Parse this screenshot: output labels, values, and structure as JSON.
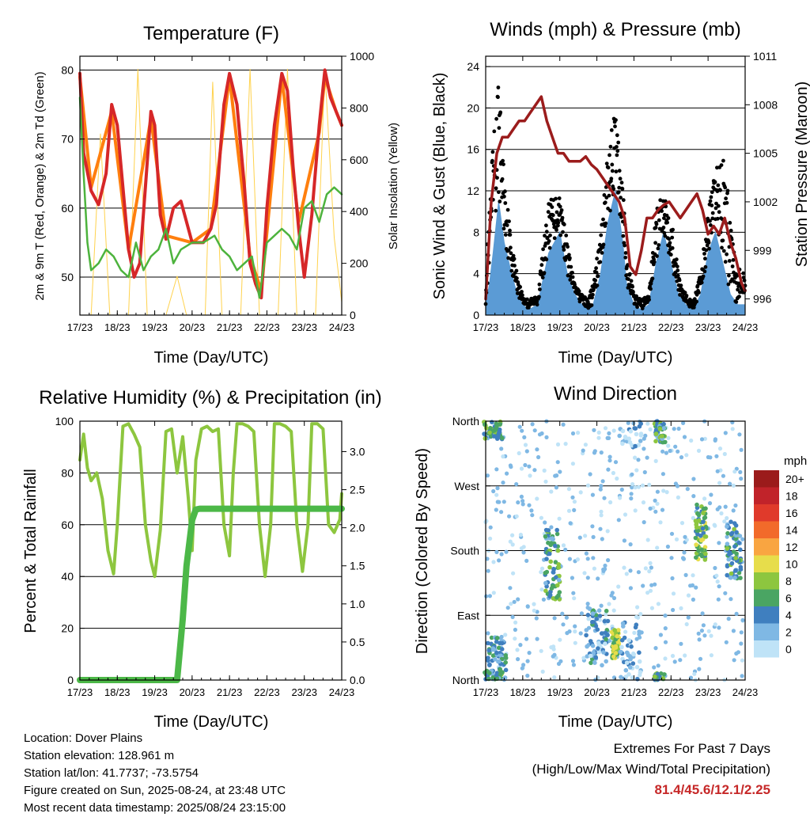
{
  "panels": {
    "temperature": {
      "title": "Temperature (F)",
      "ylabel_left": "2m & 9m T (Red, Orange) & 2m Td (Green)",
      "ylabel_right": "Solar Insolation (Yellow)",
      "xlabel": "Time (Day/UTC)"
    },
    "winds": {
      "title": "Winds (mph) & Pressure (mb)",
      "ylabel_left": "Sonic Wind & Gust (Blue, Black)",
      "ylabel_right": "Station Pressure (Maroon)",
      "xlabel": "Time (Day/UTC)"
    },
    "humidity": {
      "title": "Relative Humidity (%) & Precipitation (in)",
      "ylabel_left": "Percent & Total Rainfall",
      "xlabel": "Time (Day/UTC)"
    },
    "direction": {
      "title": "Wind Direction",
      "ylabel_left": "Direction (Colored By Speed)",
      "xlabel": "Time (Day/UTC)",
      "legend_title": "mph"
    }
  },
  "info": {
    "location": "Location: Dover Plains",
    "elevation": "Station elevation: 128.961 m",
    "latlon": "Station lat/lon: 41.7737; -73.5754",
    "created": "Figure created on Sun, 2025-08-24, at 23:48 UTC",
    "recent": "Most recent data timestamp: 2025/08/24 23:15:00"
  },
  "extremes": {
    "title": "Extremes For Past 7 Days",
    "subtitle": "(High/Low/Max Wind/Total Precipitation)",
    "values": "81.4/45.6/12.1/2.25"
  },
  "colors": {
    "temp2m": "#d62728",
    "temp9m": "#ff7f0e",
    "dewpoint": "#4db33d",
    "solar": "#ffd24d",
    "wind": "#5b9bd5",
    "gust": "#000000",
    "pressure": "#9b1c1c",
    "rh": "#8dc63f",
    "precip": "#4cb848"
  },
  "chart_data": [
    {
      "type": "line",
      "title": "Temperature (F)",
      "xlabel": "Time (Day/UTC)",
      "ylabel": "2m & 9m T (Red, Orange) & 2m Td (Green)",
      "ylabel2": "Solar Insolation (Yellow)",
      "x_ticks": [
        "17/23",
        "18/23",
        "19/23",
        "20/23",
        "21/23",
        "22/23",
        "23/23",
        "24/23"
      ],
      "y_ticks": [
        50,
        60,
        70,
        80
      ],
      "y2_ticks": [
        0,
        200,
        400,
        600,
        800,
        1000
      ],
      "ylim": [
        44.5,
        82
      ],
      "y2lim": [
        0,
        1000
      ],
      "series": [
        {
          "name": "2m T",
          "color": "#d62728",
          "x": [
            0,
            0.1,
            0.3,
            0.5,
            0.7,
            0.85,
            1.0,
            1.15,
            1.3,
            1.45,
            1.6,
            1.75,
            1.9,
            2.0,
            2.15,
            2.3,
            2.5,
            2.7,
            3.0,
            3.3,
            3.5,
            3.65,
            3.75,
            3.85,
            4.0,
            4.2,
            4.4,
            4.55,
            4.7,
            4.85,
            5.0,
            5.2,
            5.4,
            5.55,
            5.7,
            5.85,
            6.0,
            6.2,
            6.4,
            6.55,
            6.7,
            6.85,
            7.0
          ],
          "y": [
            79.5,
            68,
            62.5,
            60.5,
            65,
            75,
            72,
            63,
            54,
            50,
            52,
            63,
            74,
            72,
            59,
            55.5,
            60,
            61,
            55,
            55,
            57,
            60.5,
            68,
            75,
            79.5,
            75,
            63,
            52,
            49,
            47,
            60,
            72,
            79.5,
            77,
            66,
            57,
            50,
            59,
            72,
            80,
            76,
            74,
            72
          ]
        },
        {
          "name": "9m T",
          "color": "#ff7f0e",
          "x": [
            0,
            0.3,
            0.85,
            1.3,
            1.9,
            2.3,
            3.0,
            3.5,
            4.0,
            4.55,
            4.85,
            5.4,
            5.85,
            6.4,
            6.55,
            6.85,
            7.0
          ],
          "y": [
            79,
            63,
            74,
            54,
            73,
            56,
            55,
            57,
            79,
            53,
            48,
            79,
            58,
            71,
            79,
            74,
            72
          ]
        },
        {
          "name": "2m Td",
          "color": "#4db33d",
          "x": [
            0,
            0.1,
            0.2,
            0.3,
            0.5,
            0.7,
            0.9,
            1.1,
            1.3,
            1.5,
            1.7,
            1.9,
            2.1,
            2.3,
            2.5,
            2.7,
            3.0,
            3.3,
            3.6,
            3.8,
            4.0,
            4.2,
            4.4,
            4.6,
            4.8,
            5.0,
            5.2,
            5.4,
            5.6,
            5.8,
            6.0,
            6.2,
            6.4,
            6.6,
            6.8,
            7.0
          ],
          "y": [
            76,
            65,
            55,
            51,
            52,
            54,
            53,
            51,
            50,
            55,
            51,
            53,
            54,
            57,
            52,
            54,
            55,
            55,
            56,
            54,
            53,
            51,
            52,
            53,
            47,
            55,
            56,
            57,
            56,
            54,
            60,
            61,
            58,
            62,
            63,
            62
          ]
        },
        {
          "name": "Solar Insolation",
          "color": "#ffd24d",
          "axis": "right",
          "x": [
            0.3,
            0.55,
            0.8,
            1.05,
            1.3,
            1.55,
            1.8,
            2.05,
            2.3,
            2.6,
            2.85,
            3.1,
            3.35,
            3.55,
            3.8,
            4.05,
            4.3,
            4.55,
            4.8,
            5.05,
            5.3,
            5.55,
            5.8,
            6.05,
            6.3,
            6.55,
            6.8,
            7.0
          ],
          "y": [
            0,
            700,
            0,
            0,
            0,
            950,
            0,
            0,
            0,
            150,
            0,
            0,
            0,
            900,
            0,
            0,
            0,
            950,
            0,
            0,
            0,
            950,
            0,
            0,
            0,
            950,
            300,
            50
          ]
        }
      ]
    },
    {
      "type": "line",
      "title": "Winds (mph) & Pressure (mb)",
      "xlabel": "Time (Day/UTC)",
      "ylabel": "Sonic Wind & Gust (Blue, Black)",
      "ylabel2": "Station Pressure (Maroon)",
      "x_ticks": [
        "17/23",
        "18/23",
        "19/23",
        "20/23",
        "21/23",
        "22/23",
        "23/23",
        "24/23"
      ],
      "y_ticks": [
        0,
        4,
        8,
        12,
        16,
        20,
        24
      ],
      "y2_ticks": [
        996,
        999,
        1002,
        1005,
        1008,
        1011
      ],
      "ylim": [
        0,
        25
      ],
      "y2lim": [
        995,
        1011
      ],
      "series": [
        {
          "name": "Sonic Wind",
          "color": "#5b9bd5",
          "x": [
            0,
            0.1,
            0.2,
            0.35,
            0.5,
            0.7,
            0.85,
            1.0,
            1.15,
            1.4,
            1.7,
            2.0,
            2.2,
            2.4,
            2.6,
            2.75,
            2.9,
            3.1,
            3.3,
            3.5,
            3.7,
            3.8,
            4.0,
            4.2,
            4.4,
            4.6,
            4.8,
            5.0,
            5.2,
            5.4,
            5.6,
            5.8,
            6.0,
            6.2,
            6.4,
            6.6,
            6.8,
            7.0
          ],
          "y": [
            1,
            3,
            6,
            11,
            7,
            4,
            2,
            1,
            0.5,
            1,
            6,
            8,
            4,
            2,
            1,
            0.5,
            1,
            4,
            9,
            12,
            7,
            3,
            1,
            0.5,
            1,
            5,
            8,
            5,
            2,
            1,
            0.5,
            2,
            6,
            8,
            5,
            2,
            1,
            1
          ]
        },
        {
          "name": "Gust",
          "color": "#000000",
          "x": [
            0,
            0.1,
            0.2,
            0.35,
            0.5,
            0.7,
            0.85,
            1.0,
            1.15,
            1.4,
            1.7,
            2.0,
            2.2,
            2.4,
            2.6,
            2.75,
            2.9,
            3.1,
            3.3,
            3.5,
            3.7,
            3.8,
            4.0,
            4.2,
            4.4,
            4.6,
            4.8,
            5.0,
            5.2,
            5.4,
            5.6,
            5.8,
            6.0,
            6.2,
            6.4,
            6.6,
            6.8,
            7.0
          ],
          "y": [
            5,
            10,
            17,
            23,
            14,
            7,
            4,
            2,
            1.5,
            2,
            11,
            12,
            7,
            3,
            2,
            1.5,
            3,
            8,
            16,
            20,
            13,
            6,
            2,
            1.5,
            2,
            10,
            12,
            10,
            4,
            2,
            1.5,
            4,
            10,
            14,
            16,
            10,
            5,
            4
          ]
        },
        {
          "name": "Station Pressure",
          "color": "#9b1c1c",
          "axis": "right",
          "x": [
            0,
            0.15,
            0.3,
            0.45,
            0.6,
            0.75,
            0.9,
            1.05,
            1.2,
            1.35,
            1.5,
            1.65,
            1.8,
            1.95,
            2.1,
            2.25,
            2.4,
            2.55,
            2.7,
            2.85,
            3.0,
            3.15,
            3.3,
            3.45,
            3.6,
            3.75,
            3.9,
            4.05,
            4.2,
            4.35,
            4.5,
            4.65,
            4.8,
            4.95,
            5.1,
            5.25,
            5.4,
            5.55,
            5.7,
            5.85,
            6.0,
            6.15,
            6.3,
            6.45,
            6.6,
            6.75,
            6.9,
            7.0
          ],
          "y": [
            996,
            1002,
            1005,
            1006,
            1006,
            1006.5,
            1007,
            1007,
            1007.5,
            1008,
            1008.5,
            1007,
            1006,
            1005,
            1005,
            1004.5,
            1004.5,
            1004.5,
            1004.8,
            1004.3,
            1004,
            1003.5,
            1003,
            1002.5,
            1002,
            1001,
            998,
            997.5,
            999,
            1001,
            1001,
            1001.5,
            1001.8,
            1002,
            1001.5,
            1001,
            1001.5,
            1002,
            1002.5,
            1001.5,
            1000,
            1000.5,
            1000,
            1001,
            999.5,
            998.5,
            997,
            996.5
          ]
        }
      ]
    },
    {
      "type": "line",
      "title": "Relative Humidity (%) & Precipitation (in)",
      "xlabel": "Time (Day/UTC)",
      "ylabel": "Percent & Total Rainfall",
      "x_ticks": [
        "17/23",
        "18/23",
        "19/23",
        "20/23",
        "21/23",
        "22/23",
        "23/23",
        "24/23"
      ],
      "y_ticks": [
        0,
        20,
        40,
        60,
        80,
        100
      ],
      "y2_ticks": [
        "0.0",
        "0.5",
        "1.0",
        "1.5",
        "2.0",
        "2.5",
        "3.0"
      ],
      "ylim": [
        0,
        100
      ],
      "y2lim": [
        0,
        3.4
      ],
      "series": [
        {
          "name": "Relative Humidity",
          "color": "#8dc63f",
          "x": [
            0,
            0.1,
            0.2,
            0.3,
            0.45,
            0.6,
            0.75,
            0.9,
            1.0,
            1.15,
            1.3,
            1.45,
            1.6,
            1.75,
            1.9,
            2.0,
            2.15,
            2.3,
            2.45,
            2.6,
            2.75,
            2.9,
            3.0,
            3.1,
            3.25,
            3.4,
            3.55,
            3.7,
            3.85,
            4.0,
            4.1,
            4.2,
            4.35,
            4.5,
            4.65,
            4.8,
            4.95,
            5.1,
            5.2,
            5.35,
            5.5,
            5.65,
            5.8,
            5.95,
            6.1,
            6.2,
            6.35,
            6.5,
            6.65,
            6.8,
            6.95,
            7.0
          ],
          "y": [
            85,
            95,
            82,
            77,
            80,
            70,
            50,
            41,
            60,
            98,
            99,
            95,
            90,
            60,
            46,
            40,
            58,
            96,
            97,
            80,
            94,
            70,
            50,
            85,
            97,
            98,
            96,
            97,
            60,
            48,
            80,
            99,
            99,
            98,
            96,
            60,
            40,
            60,
            99,
            99,
            98,
            96,
            60,
            42,
            60,
            99,
            99,
            97,
            60,
            57,
            62,
            72
          ]
        },
        {
          "name": "Total Precipitation",
          "color": "#4cb848",
          "axis": "right",
          "x": [
            0,
            1,
            2,
            2.6,
            2.75,
            2.85,
            3.0,
            3.1,
            3.2,
            4,
            5,
            6,
            7
          ],
          "y": [
            0,
            0,
            0,
            0,
            0.8,
            1.5,
            2.1,
            2.24,
            2.25,
            2.25,
            2.25,
            2.25,
            2.25
          ]
        }
      ]
    },
    {
      "type": "scatter",
      "title": "Wind Direction",
      "xlabel": "Time (Day/UTC)",
      "ylabel": "Direction (Colored By Speed)",
      "x_ticks": [
        "17/23",
        "18/23",
        "19/23",
        "20/23",
        "21/23",
        "22/23",
        "23/23",
        "24/23"
      ],
      "y_ticks": [
        "North",
        "East",
        "South",
        "West",
        "North"
      ],
      "y_values": [
        0,
        90,
        180,
        270,
        360
      ],
      "color_scale_title": "mph",
      "color_scale": [
        {
          "label": "20+",
          "color": "#9b1b1b"
        },
        {
          "label": "18",
          "color": "#c1232a"
        },
        {
          "label": "16",
          "color": "#e03a2b"
        },
        {
          "label": "14",
          "color": "#f26a2a"
        },
        {
          "label": "12",
          "color": "#f9a541"
        },
        {
          "label": "10",
          "color": "#e7dd4b"
        },
        {
          "label": "8",
          "color": "#8dc63f"
        },
        {
          "label": "6",
          "color": "#4aa563"
        },
        {
          "label": "4",
          "color": "#3f7fbf"
        },
        {
          "label": "2",
          "color": "#7fb8e4"
        },
        {
          "label": "0",
          "color": "#bfe3f7"
        }
      ],
      "clusters": [
        {
          "x": 0.2,
          "dir": 355,
          "spread_x": 0.25,
          "spread_d": 20,
          "speed": 6
        },
        {
          "x": 0.3,
          "dir": 30,
          "spread_x": 0.25,
          "spread_d": 30,
          "speed": 4
        },
        {
          "x": 1.8,
          "dir": 160,
          "spread_x": 0.2,
          "spread_d": 50,
          "speed": 5
        },
        {
          "x": 3.0,
          "dir": 60,
          "spread_x": 0.3,
          "spread_d": 40,
          "speed": 3
        },
        {
          "x": 3.5,
          "dir": 50,
          "spread_x": 0.1,
          "spread_d": 20,
          "speed": 8
        },
        {
          "x": 3.9,
          "dir": 20,
          "spread_x": 0.3,
          "spread_d": 60,
          "speed": 2
        },
        {
          "x": 4.7,
          "dir": 350,
          "spread_x": 0.15,
          "spread_d": 20,
          "speed": 5
        },
        {
          "x": 5.8,
          "dir": 205,
          "spread_x": 0.15,
          "spread_d": 40,
          "speed": 7
        },
        {
          "x": 6.7,
          "dir": 180,
          "spread_x": 0.2,
          "spread_d": 40,
          "speed": 5
        }
      ]
    }
  ]
}
